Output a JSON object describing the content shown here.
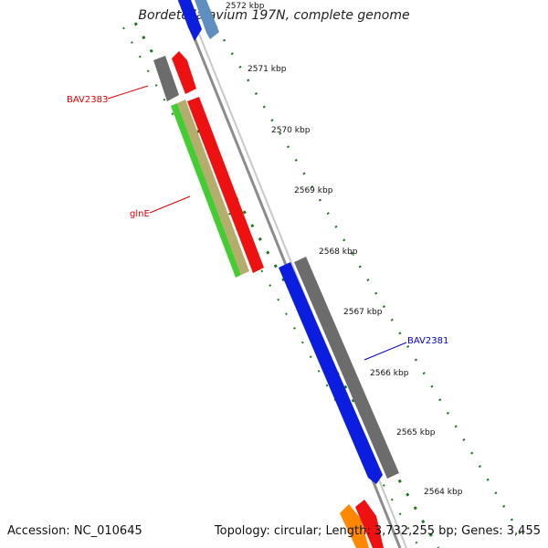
{
  "title": "Bordetella avium 197N, complete genome",
  "footer": {
    "accession": "Accession: NC_010645",
    "summary": "Topology: circular; Length: 3,732,255 bp; Genes: 3,455"
  },
  "colors": {
    "backbone": "#8c8c8c",
    "tick_green": "#1e7a1e",
    "label_red": "#e00000",
    "label_blue": "#0000cc"
  },
  "ticks": [
    {
      "label": "2572 kbp"
    },
    {
      "label": "2571 kbp"
    },
    {
      "label": "2570 kbp"
    },
    {
      "label": "2569 kbp"
    },
    {
      "label": "2568 kbp"
    },
    {
      "label": "2567 kbp"
    },
    {
      "label": "2566 kbp"
    },
    {
      "label": "2565 kbp"
    },
    {
      "label": "2564 kbp"
    }
  ],
  "gene_labels": [
    {
      "text": "BAV2383",
      "color": "#e00000"
    },
    {
      "text": "glnE",
      "color": "#e00000"
    },
    {
      "text": "BAV2381",
      "color": "#0000cc"
    }
  ]
}
